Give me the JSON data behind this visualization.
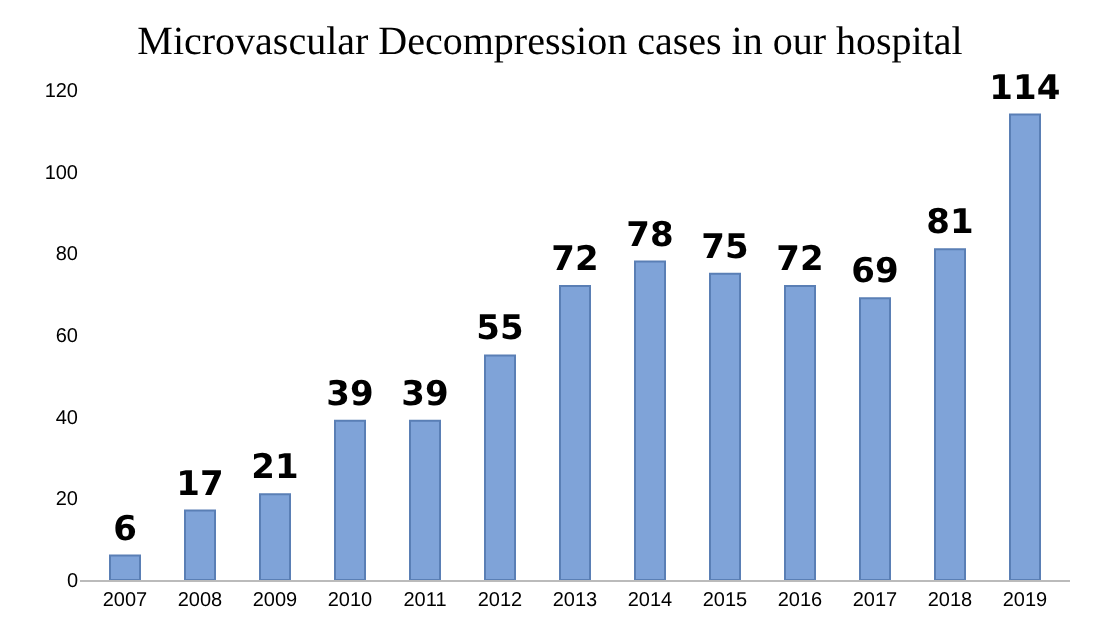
{
  "chart_data": {
    "type": "bar",
    "title": "Microvascular Decompression cases in our hospital",
    "categories": [
      "2007",
      "2008",
      "2009",
      "2010",
      "2011",
      "2012",
      "2013",
      "2014",
      "2015",
      "2016",
      "2017",
      "2018",
      "2019"
    ],
    "values": [
      6,
      17,
      21,
      39,
      39,
      55,
      72,
      78,
      75,
      72,
      69,
      81,
      114
    ],
    "color": "#7fa3d8",
    "ylim": [
      0,
      120
    ],
    "yticks": [
      0,
      20,
      40,
      60,
      80,
      100,
      120
    ],
    "data_labels": true
  }
}
